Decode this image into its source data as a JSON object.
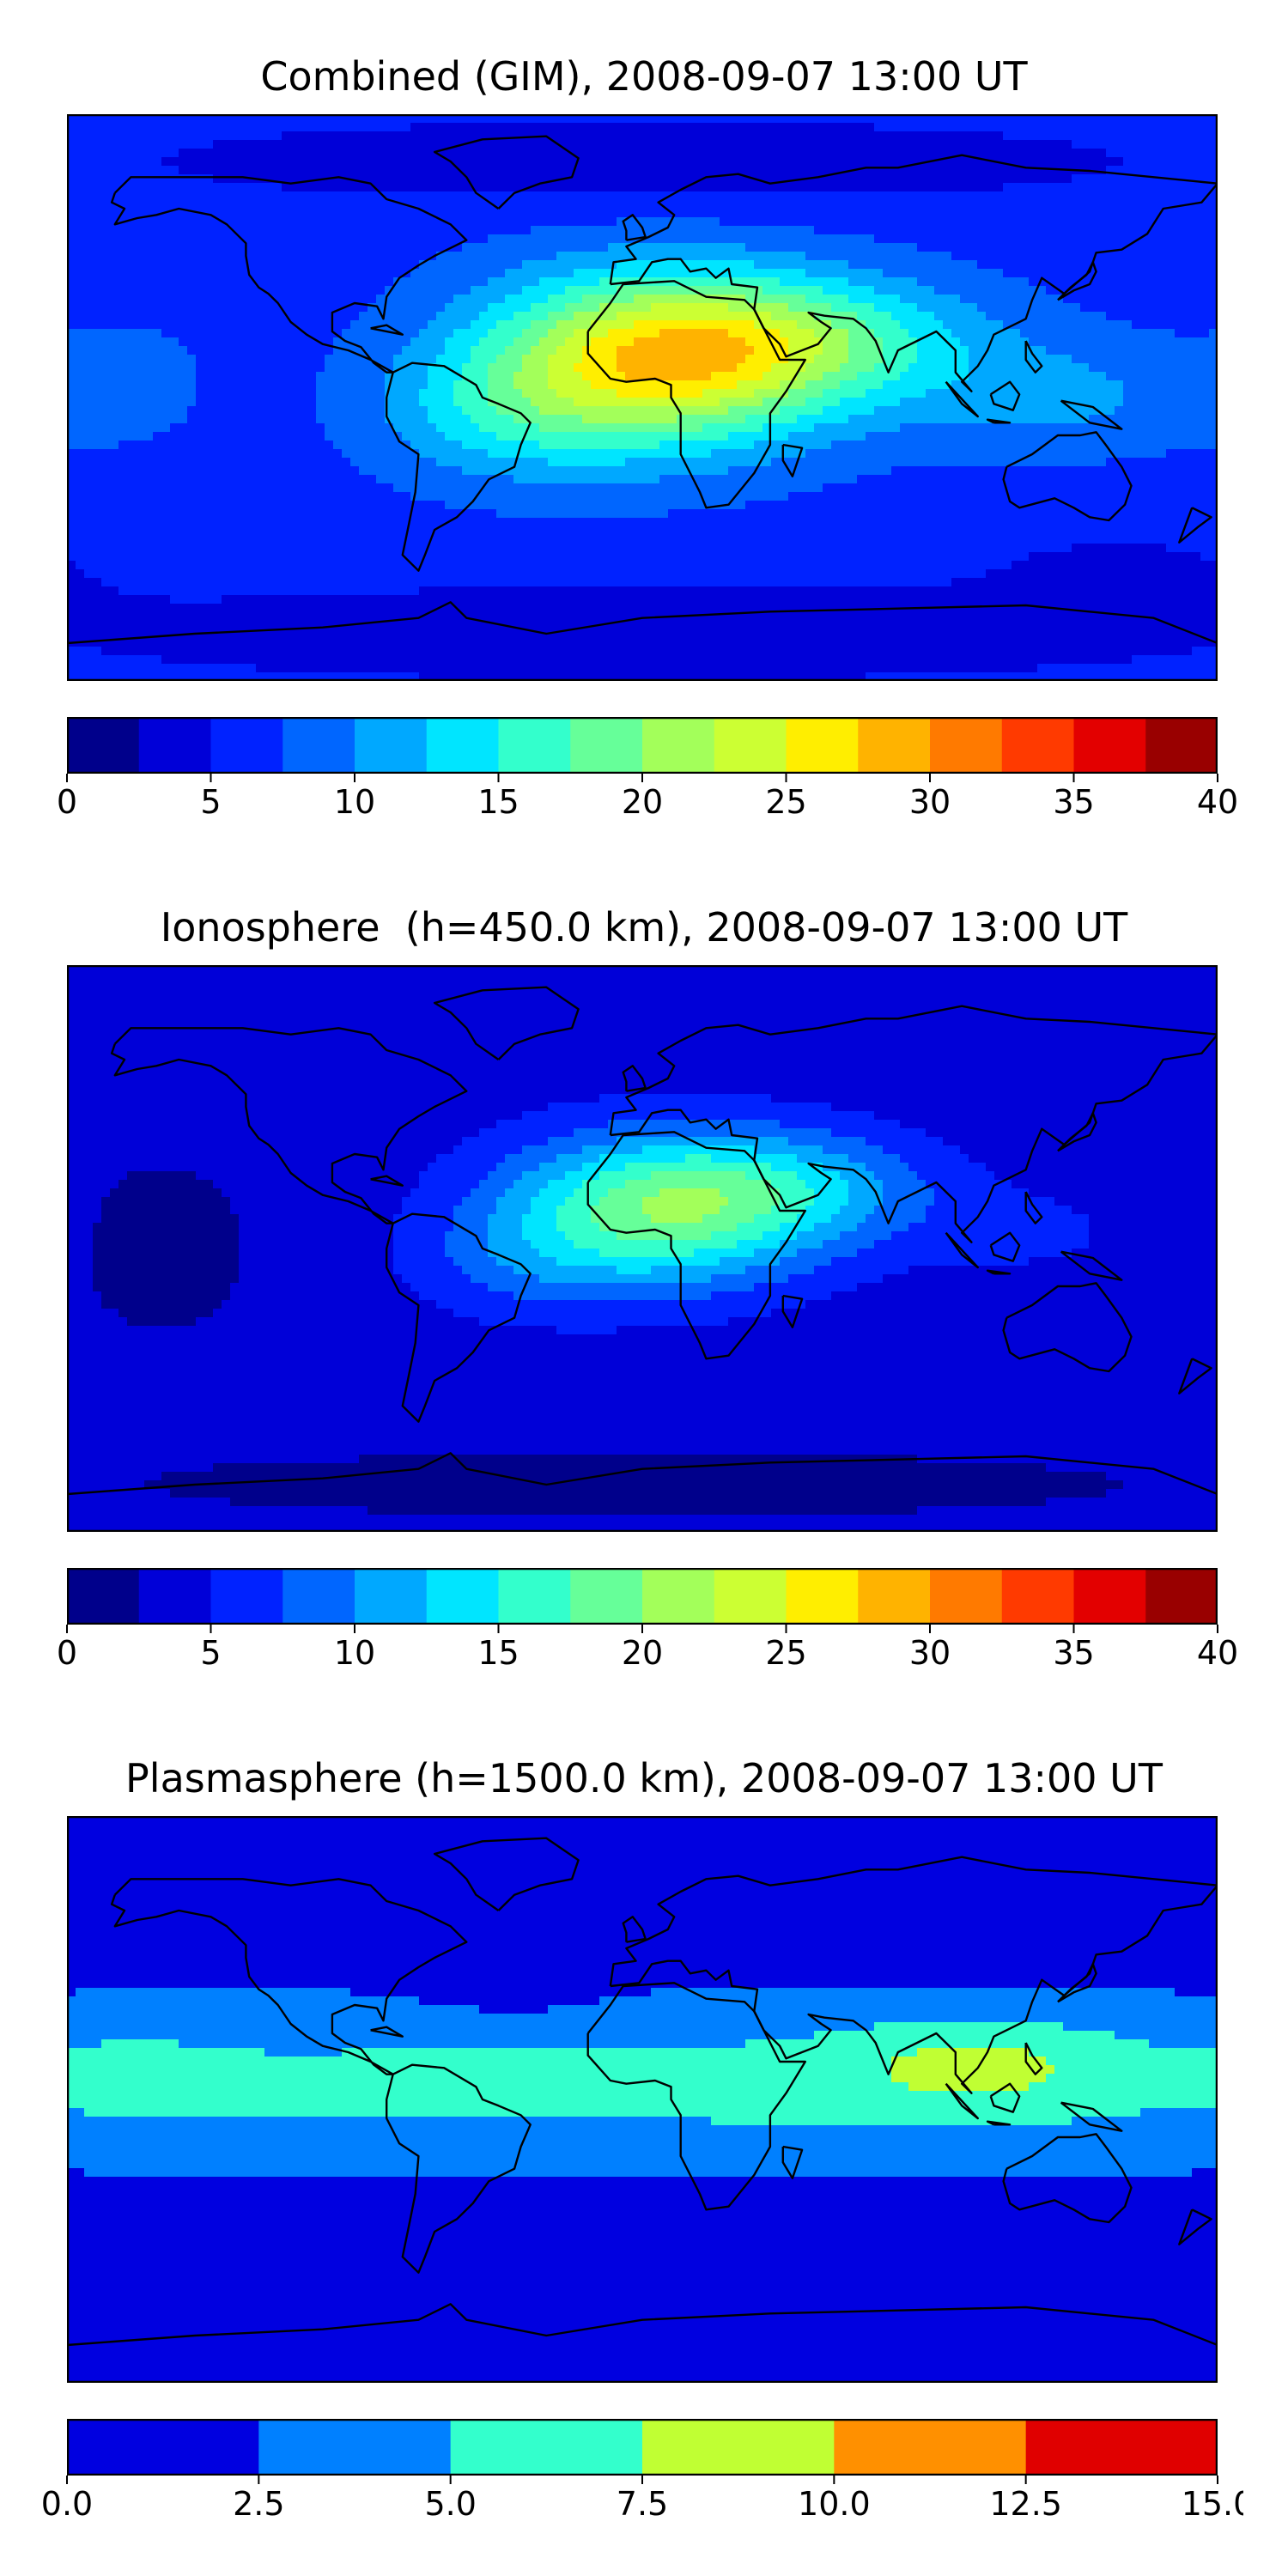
{
  "panels": [
    {
      "title": "Combined (GIM), 2008-09-07 13:00 UT",
      "chart_data": {
        "type": "heatmap",
        "title": "Combined (GIM), 2008-09-07 13:00 UT",
        "colorbar": {
          "levels": [
            0,
            2.5,
            5,
            7.5,
            10,
            12.5,
            15,
            17.5,
            20,
            22.5,
            25,
            27.5,
            30,
            32.5,
            35,
            37.5,
            40
          ],
          "tick_values": [
            0,
            5,
            10,
            15,
            20,
            25,
            30,
            35,
            40
          ],
          "tick_labels": [
            "0",
            "5",
            "10",
            "15",
            "20",
            "25",
            "30",
            "35",
            "40"
          ],
          "colors": [
            "#00008b",
            "#0000d8",
            "#0022ff",
            "#0066ff",
            "#00a8ff",
            "#00e5ff",
            "#33ffcc",
            "#66ff99",
            "#a3ff5a",
            "#ccff33",
            "#ffee00",
            "#ffb300",
            "#ff7a00",
            "#ff3a00",
            "#e30000",
            "#990000"
          ]
        },
        "field": {
          "background": 6.5,
          "blobs": [
            {
              "lon": 5,
              "lat": 12,
              "slon": 55,
              "slat": 28,
              "amp": 19
            },
            {
              "lon": 55,
              "lat": 18,
              "slon": 55,
              "slat": 20,
              "amp": 8
            },
            {
              "lon": -45,
              "lat": -5,
              "slon": 40,
              "slat": 22,
              "amp": 5
            },
            {
              "lon": 130,
              "lat": 0,
              "slon": 45,
              "slat": 18,
              "amp": 4
            },
            {
              "lon": -160,
              "lat": 5,
              "slon": 30,
              "slat": 25,
              "amp": 1.5
            },
            {
              "lon": 0,
              "lat": 75,
              "slon": 180,
              "slat": 15,
              "amp": -3
            },
            {
              "lon": 0,
              "lat": -75,
              "slon": 180,
              "slat": 15,
              "amp": -4
            },
            {
              "lon": 150,
              "lat": -55,
              "slon": 50,
              "slat": 15,
              "amp": -2
            }
          ]
        }
      }
    },
    {
      "title": "Ionosphere  (h=450.0 km), 2008-09-07 13:00 UT",
      "chart_data": {
        "type": "heatmap",
        "title": "Ionosphere  (h=450.0 km), 2008-09-07 13:00 UT",
        "colorbar": {
          "levels": [
            0,
            2.5,
            5,
            7.5,
            10,
            12.5,
            15,
            17.5,
            20,
            22.5,
            25,
            27.5,
            30,
            32.5,
            35,
            37.5,
            40
          ],
          "tick_values": [
            0,
            5,
            10,
            15,
            20,
            25,
            30,
            35,
            40
          ],
          "tick_labels": [
            "0",
            "5",
            "10",
            "15",
            "20",
            "25",
            "30",
            "35",
            "40"
          ],
          "colors": [
            "#00008b",
            "#0000d8",
            "#0022ff",
            "#0066ff",
            "#00a8ff",
            "#00e5ff",
            "#33ffcc",
            "#66ff99",
            "#a3ff5a",
            "#ccff33",
            "#ffee00",
            "#ffb300",
            "#ff7a00",
            "#ff3a00",
            "#e30000",
            "#990000"
          ]
        },
        "field": {
          "background": 3.5,
          "blobs": [
            {
              "lon": 5,
              "lat": 12,
              "slon": 50,
              "slat": 24,
              "amp": 15
            },
            {
              "lon": 50,
              "lat": 20,
              "slon": 45,
              "slat": 18,
              "amp": 6
            },
            {
              "lon": -40,
              "lat": -5,
              "slon": 35,
              "slat": 18,
              "amp": 3
            },
            {
              "lon": 120,
              "lat": 5,
              "slon": 40,
              "slat": 15,
              "amp": 2
            },
            {
              "lon": -150,
              "lat": 0,
              "slon": 40,
              "slat": 40,
              "amp": -1.5
            },
            {
              "lon": 0,
              "lat": -75,
              "slon": 180,
              "slat": 12,
              "amp": -2
            }
          ]
        }
      }
    },
    {
      "title": "Plasmasphere (h=1500.0 km), 2008-09-07 13:00 UT",
      "chart_data": {
        "type": "heatmap",
        "title": "Plasmasphere (h=1500.0 km), 2008-09-07 13:00 UT",
        "colorbar": {
          "levels": [
            0,
            2.5,
            5,
            7.5,
            10,
            12.5,
            15
          ],
          "tick_values": [
            0,
            2.5,
            5,
            7.5,
            10,
            12.5,
            15
          ],
          "tick_labels": [
            "0.0",
            "2.5",
            "5.0",
            "7.5",
            "10.0",
            "12.5",
            "15.0"
          ],
          "colors": [
            "#0000e0",
            "#0080ff",
            "#33ffcc",
            "#c0ff33",
            "#ff9000",
            "#e00000"
          ]
        },
        "field": {
          "background": 1.2,
          "blobs": [
            {
              "lon": 0,
              "lat": 5,
              "slon": 400,
              "slat": 27,
              "amp": 4.6
            },
            {
              "lon": 105,
              "lat": 12,
              "slon": 42,
              "slat": 15,
              "amp": 3.2
            },
            {
              "lon": -160,
              "lat": 10,
              "slon": 30,
              "slat": 18,
              "amp": 0.9
            },
            {
              "lon": -40,
              "lat": 35,
              "slon": 30,
              "slat": 12,
              "amp": -1.2
            }
          ]
        }
      }
    }
  ],
  "continents": [
    [
      [
        -165,
        65
      ],
      [
        -160,
        70
      ],
      [
        -140,
        70
      ],
      [
        -125,
        70
      ],
      [
        -110,
        68
      ],
      [
        -95,
        70
      ],
      [
        -85,
        68
      ],
      [
        -80,
        63
      ],
      [
        -70,
        60
      ],
      [
        -60,
        55
      ],
      [
        -55,
        50
      ],
      [
        -65,
        45
      ],
      [
        -70,
        42
      ],
      [
        -76,
        38
      ],
      [
        -80,
        32
      ],
      [
        -81,
        25
      ],
      [
        -83,
        29
      ],
      [
        -90,
        30
      ],
      [
        -97,
        27
      ],
      [
        -97,
        21
      ],
      [
        -93,
        18
      ],
      [
        -88,
        16
      ],
      [
        -84,
        11
      ],
      [
        -80,
        8
      ],
      [
        -78,
        8
      ],
      [
        -85,
        12
      ],
      [
        -92,
        15
      ],
      [
        -100,
        17
      ],
      [
        -105,
        20
      ],
      [
        -110,
        24
      ],
      [
        -114,
        30
      ],
      [
        -117,
        33
      ],
      [
        -120,
        35
      ],
      [
        -123,
        39
      ],
      [
        -124,
        45
      ],
      [
        -124,
        49
      ],
      [
        -130,
        55
      ],
      [
        -135,
        58
      ],
      [
        -145,
        60
      ],
      [
        -152,
        58
      ],
      [
        -158,
        57
      ],
      [
        -165,
        55
      ],
      [
        -162,
        60
      ],
      [
        -166,
        62
      ],
      [
        -165,
        65
      ]
    ],
    [
      [
        -78,
        8
      ],
      [
        -72,
        11
      ],
      [
        -62,
        10
      ],
      [
        -52,
        4
      ],
      [
        -50,
        0
      ],
      [
        -45,
        -2
      ],
      [
        -38,
        -5
      ],
      [
        -35,
        -8
      ],
      [
        -38,
        -15
      ],
      [
        -40,
        -22
      ],
      [
        -48,
        -26
      ],
      [
        -53,
        -33
      ],
      [
        -58,
        -38
      ],
      [
        -65,
        -42
      ],
      [
        -68,
        -50
      ],
      [
        -70,
        -55
      ],
      [
        -75,
        -50
      ],
      [
        -73,
        -40
      ],
      [
        -71,
        -30
      ],
      [
        -70,
        -18
      ],
      [
        -76,
        -14
      ],
      [
        -80,
        -6
      ],
      [
        -80,
        0
      ],
      [
        -78,
        8
      ]
    ],
    [
      [
        -17,
        21
      ],
      [
        -10,
        30
      ],
      [
        -6,
        36
      ],
      [
        10,
        37
      ],
      [
        20,
        32
      ],
      [
        32,
        31
      ],
      [
        35,
        28
      ],
      [
        43,
        12
      ],
      [
        51,
        12
      ],
      [
        45,
        2
      ],
      [
        40,
        -5
      ],
      [
        40,
        -15
      ],
      [
        35,
        -24
      ],
      [
        27,
        -34
      ],
      [
        20,
        -35
      ],
      [
        18,
        -30
      ],
      [
        12,
        -18
      ],
      [
        12,
        -5
      ],
      [
        9,
        0
      ],
      [
        9,
        4
      ],
      [
        4,
        6
      ],
      [
        -5,
        5
      ],
      [
        -10,
        6
      ],
      [
        -17,
        14
      ],
      [
        -17,
        21
      ]
    ],
    [
      [
        -10,
        36
      ],
      [
        -9,
        43
      ],
      [
        -2,
        44
      ],
      [
        -5,
        48
      ],
      [
        2,
        51
      ],
      [
        8,
        54
      ],
      [
        10,
        58
      ],
      [
        5,
        62
      ],
      [
        12,
        66
      ],
      [
        20,
        70
      ],
      [
        30,
        71
      ],
      [
        40,
        68
      ],
      [
        55,
        70
      ],
      [
        70,
        73
      ],
      [
        80,
        73
      ],
      [
        100,
        77
      ],
      [
        120,
        73
      ],
      [
        140,
        72
      ],
      [
        160,
        70
      ],
      [
        180,
        68
      ],
      [
        175,
        62
      ],
      [
        163,
        60
      ],
      [
        158,
        52
      ],
      [
        150,
        47
      ],
      [
        142,
        46
      ],
      [
        140,
        40
      ],
      [
        132,
        33
      ],
      [
        125,
        38
      ],
      [
        122,
        31
      ],
      [
        120,
        25
      ],
      [
        110,
        20
      ],
      [
        108,
        15
      ],
      [
        105,
        10
      ],
      [
        100,
        5
      ],
      [
        103,
        2
      ],
      [
        98,
        8
      ],
      [
        98,
        15
      ],
      [
        92,
        21
      ],
      [
        80,
        15
      ],
      [
        77,
        8
      ],
      [
        73,
        18
      ],
      [
        70,
        22
      ],
      [
        66,
        25
      ],
      [
        57,
        26
      ],
      [
        52,
        27
      ],
      [
        56,
        24
      ],
      [
        59,
        22
      ],
      [
        55,
        17
      ],
      [
        45,
        13
      ],
      [
        43,
        17
      ],
      [
        38,
        22
      ],
      [
        35,
        28
      ],
      [
        36,
        35
      ],
      [
        28,
        36
      ],
      [
        27,
        41
      ],
      [
        23,
        38
      ],
      [
        20,
        41
      ],
      [
        15,
        40
      ],
      [
        12,
        44
      ],
      [
        8,
        44
      ],
      [
        3,
        43
      ],
      [
        -1,
        37
      ],
      [
        -10,
        36
      ]
    ],
    [
      [
        114,
        -22
      ],
      [
        122,
        -18
      ],
      [
        130,
        -12
      ],
      [
        137,
        -12
      ],
      [
        142,
        -11
      ],
      [
        145,
        -15
      ],
      [
        150,
        -22
      ],
      [
        153,
        -28
      ],
      [
        151,
        -34
      ],
      [
        146,
        -39
      ],
      [
        140,
        -38
      ],
      [
        135,
        -35
      ],
      [
        129,
        -32
      ],
      [
        118,
        -35
      ],
      [
        115,
        -33
      ],
      [
        113,
        -26
      ],
      [
        114,
        -22
      ]
    ],
    [
      [
        -45,
        60
      ],
      [
        -40,
        65
      ],
      [
        -32,
        68
      ],
      [
        -22,
        70
      ],
      [
        -20,
        76
      ],
      [
        -30,
        83
      ],
      [
        -50,
        82
      ],
      [
        -65,
        78
      ],
      [
        -60,
        75
      ],
      [
        -55,
        70
      ],
      [
        -52,
        65
      ],
      [
        -45,
        60
      ]
    ],
    [
      [
        -180,
        -78
      ],
      [
        -140,
        -75
      ],
      [
        -100,
        -73
      ],
      [
        -70,
        -70
      ],
      [
        -60,
        -65
      ],
      [
        -55,
        -70
      ],
      [
        -30,
        -75
      ],
      [
        0,
        -70
      ],
      [
        40,
        -68
      ],
      [
        80,
        -67
      ],
      [
        120,
        -66
      ],
      [
        160,
        -70
      ],
      [
        180,
        -78
      ]
    ],
    [
      [
        -5,
        50
      ],
      [
        1,
        51
      ],
      [
        0,
        54
      ],
      [
        -3,
        58
      ],
      [
        -6,
        56
      ],
      [
        -5,
        53
      ],
      [
        -5,
        50
      ]
    ],
    [
      [
        130,
        31
      ],
      [
        135,
        34
      ],
      [
        140,
        36
      ],
      [
        142,
        40
      ],
      [
        141,
        43
      ],
      [
        139,
        39
      ],
      [
        134,
        35
      ],
      [
        130,
        31
      ]
    ],
    [
      [
        95,
        5
      ],
      [
        105,
        -6
      ],
      [
        100,
        -2
      ],
      [
        95,
        5
      ]
    ],
    [
      [
        110,
        -8
      ],
      [
        115,
        -8
      ],
      [
        108,
        -7
      ],
      [
        110,
        -8
      ]
    ],
    [
      [
        109,
        1
      ],
      [
        115,
        5
      ],
      [
        118,
        1
      ],
      [
        116,
        -4
      ],
      [
        110,
        -2
      ],
      [
        109,
        1
      ]
    ],
    [
      [
        131,
        -1
      ],
      [
        141,
        -3
      ],
      [
        150,
        -10
      ],
      [
        140,
        -8
      ],
      [
        131,
        -1
      ]
    ],
    [
      [
        172,
        -35
      ],
      [
        178,
        -38
      ],
      [
        174,
        -41
      ],
      [
        168,
        -46
      ],
      [
        172,
        -35
      ]
    ],
    [
      [
        44,
        -15
      ],
      [
        50,
        -16
      ],
      [
        47,
        -25
      ],
      [
        44,
        -20
      ],
      [
        44,
        -15
      ]
    ],
    [
      [
        120,
        18
      ],
      [
        122,
        14
      ],
      [
        125,
        10
      ],
      [
        123,
        8
      ],
      [
        120,
        12
      ],
      [
        120,
        18
      ]
    ],
    [
      [
        -85,
        22
      ],
      [
        -75,
        20
      ],
      [
        -80,
        23
      ],
      [
        -85,
        22
      ]
    ]
  ]
}
